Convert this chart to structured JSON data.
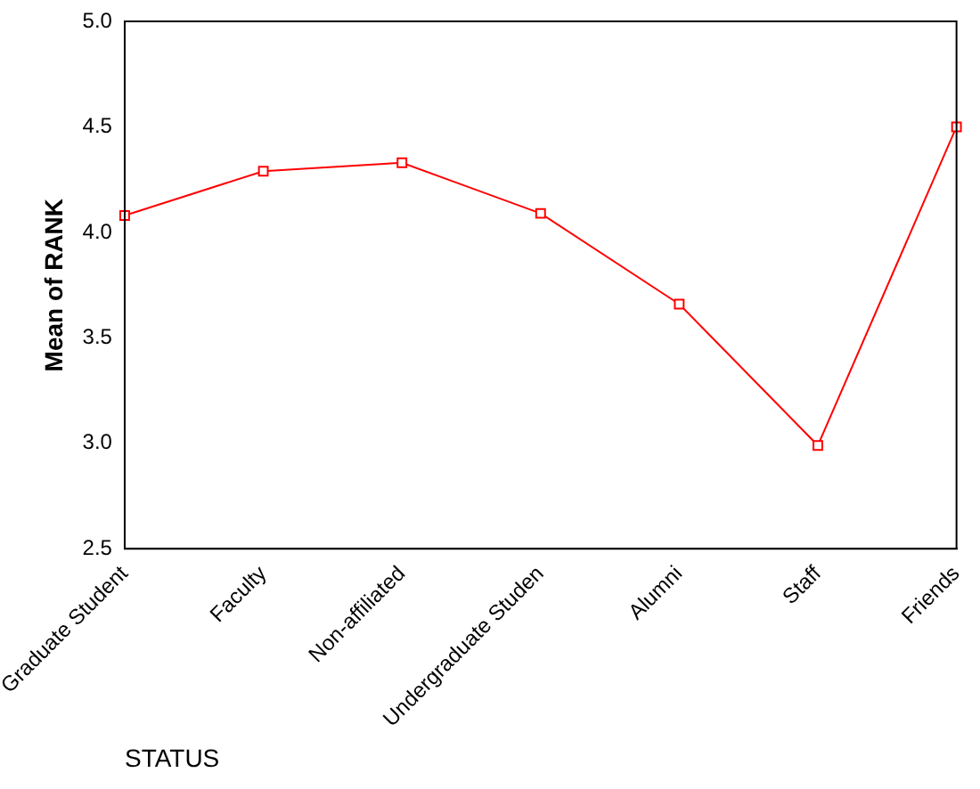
{
  "chart_data": {
    "type": "line",
    "xlabel": "STATUS",
    "ylabel": "Mean of RANK",
    "categories": [
      "Graduate Student",
      "Faculty",
      "Non-affiliated",
      "Undergraduate Studen",
      "Alumni",
      "Staff",
      "Friends"
    ],
    "series": [
      {
        "color": "#ff0000",
        "values": [
          4.08,
          4.29,
          4.33,
          4.09,
          3.66,
          2.99,
          4.5
        ]
      }
    ],
    "ylim": [
      2.5,
      5.0
    ],
    "yticks": [
      2.5,
      {
        "value": 3,
        "label": "3.0"
      },
      3.5,
      {
        "value": 4,
        "label": "4.0"
      },
      4.5,
      {
        "value": 5,
        "label": "5.0"
      }
    ],
    "grid": false,
    "legend": false,
    "marker": "square",
    "line_style": "solid"
  }
}
